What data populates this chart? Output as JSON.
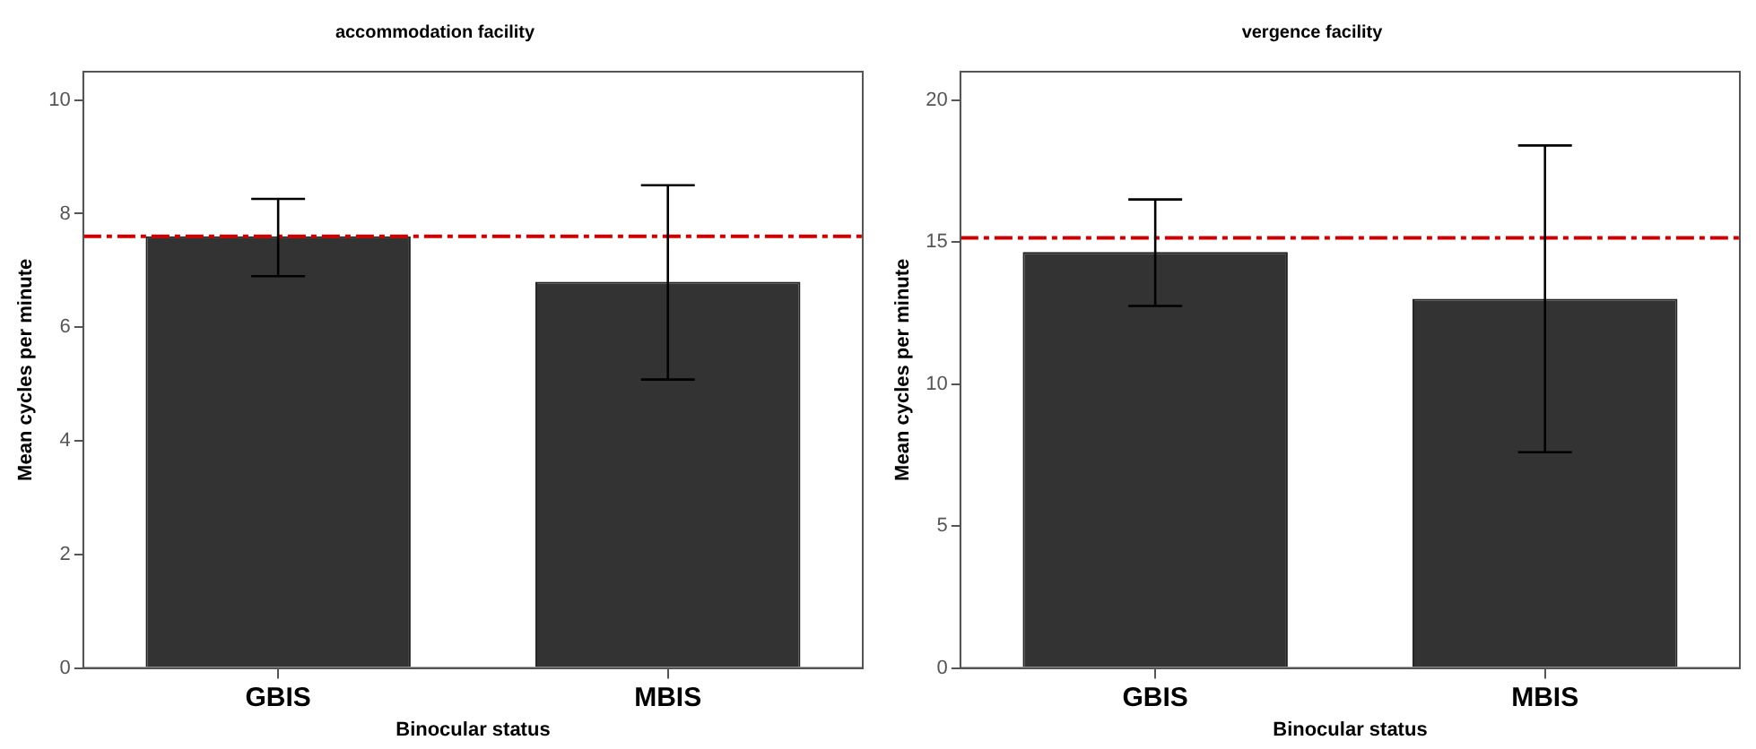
{
  "chart_data": [
    {
      "type": "bar",
      "title": "accommodation facility",
      "xlabel": "Binocular status",
      "ylabel": "Mean cycles per minute",
      "categories": [
        "GBIS",
        "MBIS"
      ],
      "values": [
        7.6,
        6.8
      ],
      "color": "#333333",
      "errors": [
        [
          6.9,
          8.26
        ],
        [
          5.08,
          8.5
        ]
      ],
      "ylim": [
        0,
        10.5
      ],
      "yticks": [
        0,
        2,
        4,
        6,
        8,
        10
      ],
      "grid": false,
      "legend": false,
      "ref_lines": [
        {
          "axis": "y",
          "value": 7.6,
          "color": "#cc0000",
          "line_style": "dashed"
        }
      ]
    },
    {
      "type": "bar",
      "title": "vergence facility",
      "xlabel": "Binocular status",
      "ylabel": "Mean cycles per minute",
      "categories": [
        "GBIS",
        "MBIS"
      ],
      "values": [
        14.65,
        13.0
      ],
      "color": "#333333",
      "errors": [
        [
          12.75,
          16.5
        ],
        [
          7.6,
          18.4
        ]
      ],
      "ylim": [
        0,
        21
      ],
      "yticks": [
        0,
        5,
        10,
        15,
        20
      ],
      "grid": false,
      "legend": false,
      "ref_lines": [
        {
          "axis": "y",
          "value": 15.15,
          "color": "#cc0000",
          "line_style": "dashed"
        }
      ]
    }
  ]
}
